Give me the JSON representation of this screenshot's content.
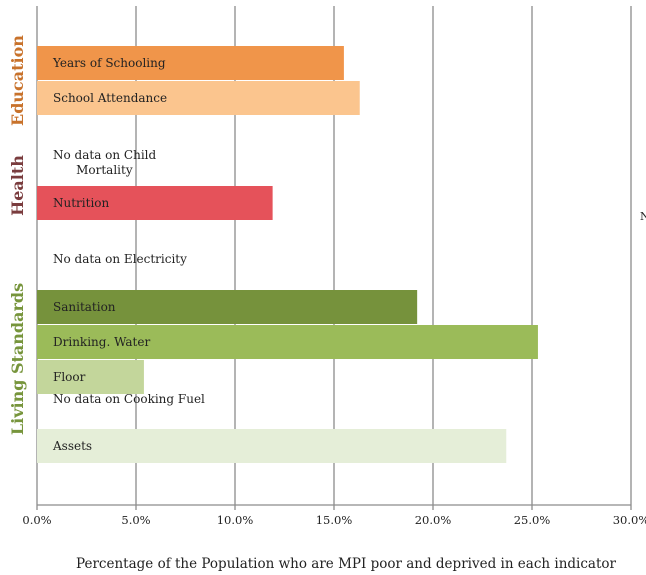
{
  "chart_data": {
    "type": "bar",
    "orientation": "horizontal",
    "xlabel": "Percentage of the Population who are MPI poor and deprived in each indicator",
    "xlim": [
      0,
      30
    ],
    "x_ticks": [
      "0.0%",
      "5.0%",
      "10.0%",
      "15.0%",
      "20.0%",
      "25.0%",
      "30.0%"
    ],
    "grid": "vertical",
    "groups": [
      {
        "name": "Education",
        "color": "#c8722b",
        "rows": [
          {
            "label": "Years of Schooling",
            "value": 15.5,
            "color": "#f0954a",
            "has_bar": true
          },
          {
            "label": "School Attendance",
            "value": 16.3,
            "color": "#fbc58e",
            "has_bar": true
          }
        ]
      },
      {
        "name": "Health",
        "color": "#7a3c3e",
        "rows": [
          {
            "label": "No data on Child Mortality",
            "value": null,
            "has_bar": false
          },
          {
            "label": "Nutrition",
            "value": 11.9,
            "color": "#e5525a",
            "has_bar": true
          }
        ]
      },
      {
        "name": "Living Standards",
        "color": "#77953c",
        "rows": [
          {
            "label": "No data on Electricity",
            "value": null,
            "has_bar": false
          },
          {
            "label": "Sanitation",
            "value": 19.2,
            "color": "#76923c",
            "has_bar": true
          },
          {
            "label": "Drinking. Water",
            "value": 25.3,
            "color": "#9bbb59",
            "has_bar": true
          },
          {
            "label": "Floor",
            "value": 5.4,
            "color": "#c3d69b",
            "has_bar": true
          },
          {
            "label": "No data on Cooking Fuel",
            "value": null,
            "has_bar": false
          },
          {
            "label": "Assets",
            "value": 23.7,
            "color": "#e5eed8",
            "has_bar": true
          }
        ]
      }
    ],
    "edge_glyph": "N"
  }
}
